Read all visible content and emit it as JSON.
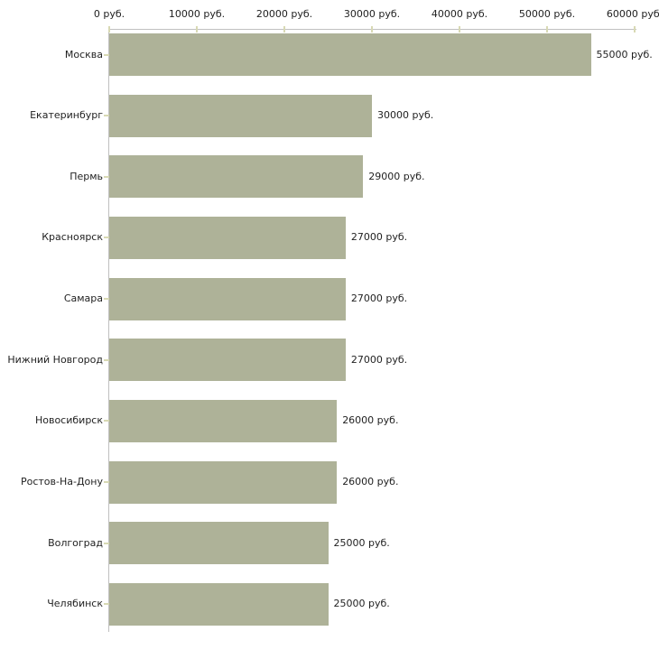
{
  "chart_data": {
    "type": "bar",
    "orientation": "horizontal",
    "title": "",
    "xlabel": "",
    "ylabel": "",
    "unit": "руб.",
    "categories": [
      "Москва",
      "Екатеринбург",
      "Пермь",
      "Красноярск",
      "Самара",
      "Нижний Новгород",
      "Новосибирск",
      "Ростов-На-Дону",
      "Волгоград",
      "Челябинск"
    ],
    "values": [
      55000,
      30000,
      29000,
      27000,
      27000,
      27000,
      26000,
      26000,
      25000,
      25000
    ],
    "value_labels": [
      "55000 руб.",
      "30000 руб.",
      "29000 руб.",
      "27000 руб.",
      "27000 руб.",
      "27000 руб.",
      "26000 руб.",
      "26000 руб.",
      "25000 руб.",
      "25000 руб."
    ],
    "x_tick_values": [
      0,
      10000,
      20000,
      30000,
      40000,
      50000,
      60000
    ],
    "x_tick_labels": [
      "0 руб.",
      "10000 руб.",
      "20000 руб.",
      "30000 руб.",
      "40000 руб.",
      "50000 руб.",
      "60000 руб."
    ],
    "xlim": [
      0,
      60000
    ],
    "grid": false,
    "legend": false,
    "colors": {
      "bar": "#aeb298",
      "axis_line": "#c0c0c0",
      "tick": "#d8d9b4",
      "text": "#1f1f1f",
      "background": "#ffffff"
    }
  }
}
